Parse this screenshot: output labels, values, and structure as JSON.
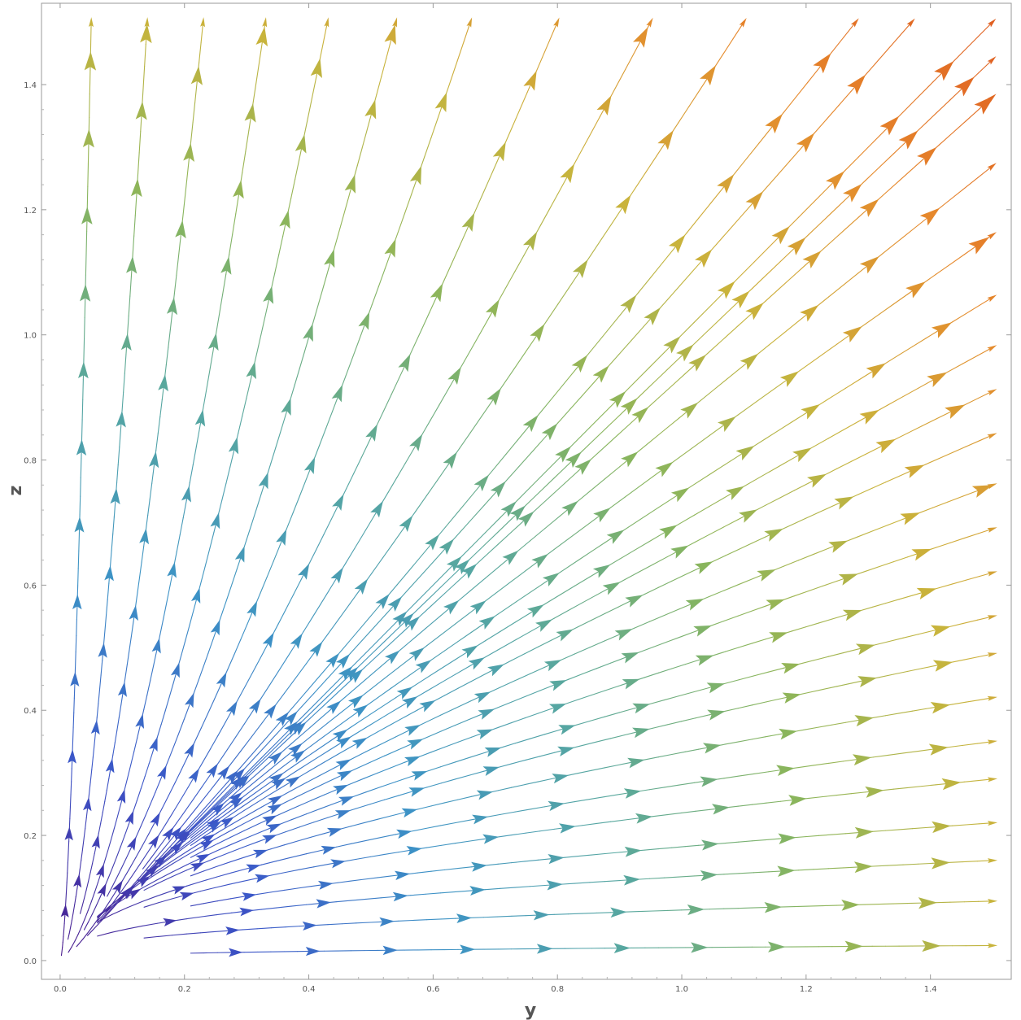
{
  "chart_data": {
    "type": "stream",
    "title": "",
    "xlabel": "y",
    "ylabel": "z",
    "xlim": [
      -0.03,
      1.53
    ],
    "ylim": [
      -0.03,
      1.53
    ],
    "x_ticks": [
      0.0,
      0.2,
      0.4,
      0.6,
      0.8,
      1.0,
      1.2,
      1.4
    ],
    "y_ticks": [
      0.0,
      0.2,
      0.4,
      0.6,
      0.8,
      1.0,
      1.2,
      1.4
    ],
    "x_tick_labels": [
      "0.0",
      "0.2",
      "0.4",
      "0.6",
      "0.8",
      "1.0",
      "1.2",
      "1.4"
    ],
    "y_tick_labels": [
      "0.0",
      "0.2",
      "0.4",
      "0.6",
      "0.8",
      "1.0",
      "1.2",
      "1.4"
    ],
    "field": "streamlines radiating from the origin, curving from vertical near the z-axis to horizontal near the y-axis; arrows point away from the origin",
    "stream_end_points": [
      [
        0.05,
        1.5
      ],
      [
        0.14,
        1.5
      ],
      [
        0.23,
        1.5
      ],
      [
        0.33,
        1.5
      ],
      [
        0.43,
        1.5
      ],
      [
        0.54,
        1.5
      ],
      [
        0.66,
        1.5
      ],
      [
        0.8,
        1.5
      ],
      [
        0.95,
        1.5
      ],
      [
        1.1,
        1.5
      ],
      [
        1.28,
        1.5
      ],
      [
        1.37,
        1.5
      ],
      [
        1.5,
        1.5
      ],
      [
        1.5,
        1.44
      ],
      [
        1.5,
        1.38
      ],
      [
        1.5,
        1.27
      ],
      [
        1.5,
        1.16
      ],
      [
        1.5,
        1.06
      ],
      [
        1.5,
        0.98
      ],
      [
        1.5,
        0.91
      ],
      [
        1.5,
        0.84
      ],
      [
        1.5,
        0.76
      ],
      [
        1.5,
        0.69
      ],
      [
        1.5,
        0.62
      ],
      [
        1.5,
        0.55
      ],
      [
        1.5,
        0.49
      ],
      [
        1.5,
        0.42
      ],
      [
        1.5,
        0.35
      ],
      [
        1.5,
        0.29
      ],
      [
        1.5,
        0.22
      ],
      [
        1.5,
        0.16
      ],
      [
        1.5,
        0.095
      ],
      [
        1.5,
        0.024
      ]
    ],
    "color_scale": [
      "#4b1a8c",
      "#3b55c8",
      "#3c92c6",
      "#57a7a0",
      "#88b55d",
      "#c8b43c",
      "#e68a2c",
      "#e06022"
    ],
    "grid": false,
    "legend": "none"
  }
}
